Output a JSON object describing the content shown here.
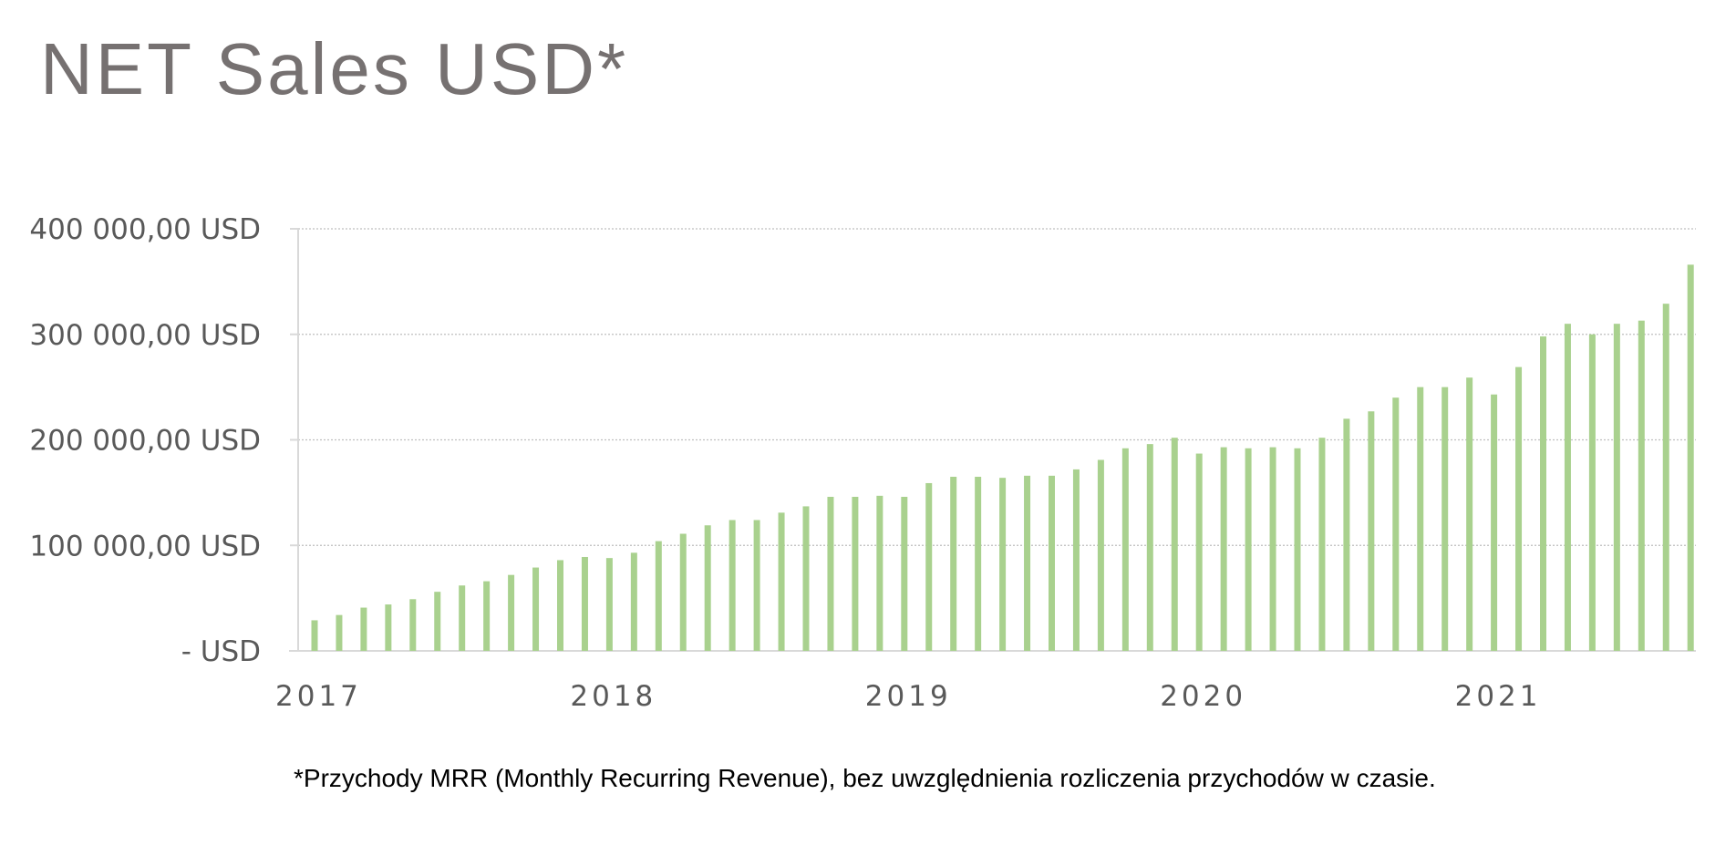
{
  "colors": {
    "bar": "#a9d18e",
    "title": "#767171",
    "tick_text": "#595959",
    "axis": "#d9d9d9",
    "grid": "#bfbfbf",
    "footnote": "#000000"
  },
  "title": "NET Sales USD*",
  "footnote": "*Przychody MRR (Monthly Recurring Revenue), bez uwzględnienia rozliczenia przychodów w czasie.",
  "chart_data": {
    "type": "bar",
    "title": "NET Sales USD*",
    "xlabel": "",
    "ylabel": "",
    "grid": true,
    "legend": "none",
    "ylim": [
      0,
      400000
    ],
    "y_ticks": [
      {
        "value": 0,
        "label": "-   USD"
      },
      {
        "value": 100000,
        "label": "100 000,00 USD"
      },
      {
        "value": 200000,
        "label": "200 000,00 USD"
      },
      {
        "value": 300000,
        "label": "300 000,00 USD"
      },
      {
        "value": 400000,
        "label": "400 000,00 USD"
      }
    ],
    "x_tick_labels": [
      {
        "index": 0,
        "label": "2017"
      },
      {
        "index": 12,
        "label": "2018"
      },
      {
        "index": 24,
        "label": "2019"
      },
      {
        "index": 36,
        "label": "2020"
      },
      {
        "index": 48,
        "label": "2021"
      }
    ],
    "period_start": "2017-01",
    "frequency": "monthly",
    "values": [
      29000,
      34000,
      41000,
      44000,
      49000,
      56000,
      62000,
      66000,
      72000,
      79000,
      86000,
      89000,
      88000,
      93000,
      104000,
      111000,
      119000,
      124000,
      124000,
      131000,
      137000,
      146000,
      146000,
      147000,
      146000,
      159000,
      165000,
      165000,
      164000,
      166000,
      166000,
      172000,
      181000,
      192000,
      196000,
      202000,
      187000,
      193000,
      192000,
      193000,
      192000,
      202000,
      220000,
      227000,
      240000,
      250000,
      250000,
      259000,
      243000,
      269000,
      298000,
      310000,
      300000,
      310000,
      313000,
      329000,
      366000
    ]
  }
}
